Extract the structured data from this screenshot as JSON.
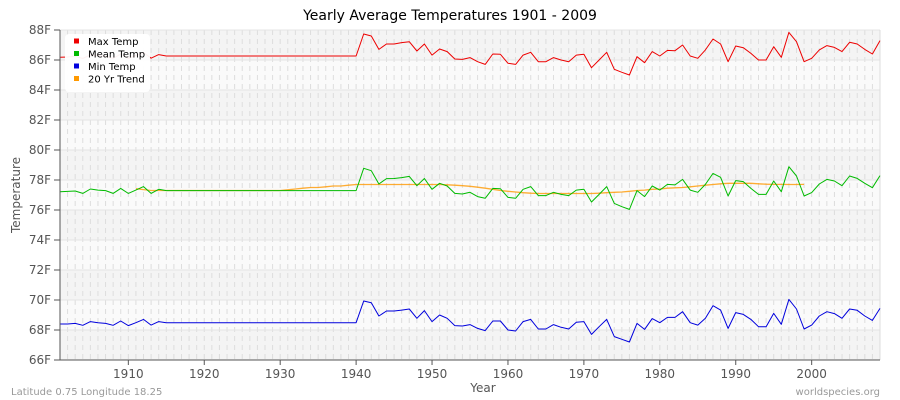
{
  "chart_data": {
    "type": "line",
    "title": "Yearly Average Temperatures 1901 - 2009",
    "xlabel": "Year",
    "ylabel": "Temperature",
    "xlim": [
      1901,
      2009
    ],
    "ylim": [
      66,
      88
    ],
    "x_ticks": [
      1910,
      1920,
      1930,
      1940,
      1950,
      1960,
      1970,
      1980,
      1990,
      2000
    ],
    "y_ticks": [
      "66F",
      "68F",
      "70F",
      "72F",
      "74F",
      "76F",
      "78F",
      "80F",
      "82F",
      "84F",
      "86F",
      "88F"
    ],
    "grid": true,
    "legend_position": "top-left",
    "x_start": 1901,
    "series": [
      {
        "name": "Max Temp",
        "color": "#ee0000",
        "values": [
          86.18,
          86.2,
          86.25,
          86.1,
          86.35,
          86.3,
          86.25,
          86.1,
          86.4,
          86.1,
          86.3,
          86.5,
          86.12,
          86.36,
          86.27,
          86.27,
          86.27,
          86.27,
          86.27,
          86.27,
          86.27,
          86.27,
          86.27,
          86.27,
          86.27,
          86.27,
          86.27,
          86.27,
          86.27,
          86.27,
          86.27,
          86.27,
          86.27,
          86.27,
          86.27,
          86.27,
          86.27,
          86.27,
          86.27,
          86.27,
          87.73,
          87.6,
          86.71,
          87.07,
          87.07,
          87.16,
          87.22,
          86.6,
          87.07,
          86.33,
          86.73,
          86.56,
          86.07,
          86.04,
          86.16,
          85.89,
          85.71,
          86.4,
          86.38,
          85.78,
          85.71,
          86.33,
          86.51,
          85.89,
          85.89,
          86.16,
          86.0,
          85.89,
          86.33,
          86.38,
          85.49,
          86.0,
          86.51,
          85.38,
          85.18,
          85.0,
          86.22,
          85.82,
          86.56,
          86.27,
          86.64,
          86.62,
          87.0,
          86.27,
          86.11,
          86.67,
          87.4,
          87.07,
          85.89,
          86.93,
          86.82,
          86.44,
          86.0,
          86.0,
          86.89,
          86.18,
          87.84,
          87.22,
          85.89,
          86.11,
          86.67,
          86.96,
          86.84,
          86.56,
          87.18,
          87.07,
          86.71,
          86.4,
          87.29
        ]
      },
      {
        "name": "Mean Temp",
        "color": "#00bb00",
        "values": [
          77.22,
          77.24,
          77.27,
          77.11,
          77.4,
          77.33,
          77.29,
          77.11,
          77.44,
          77.11,
          77.33,
          77.56,
          77.11,
          77.38,
          77.29,
          77.29,
          77.29,
          77.29,
          77.29,
          77.29,
          77.29,
          77.29,
          77.29,
          77.29,
          77.29,
          77.29,
          77.29,
          77.29,
          77.29,
          77.29,
          77.29,
          77.29,
          77.29,
          77.29,
          77.29,
          77.29,
          77.29,
          77.29,
          77.29,
          77.29,
          78.78,
          78.62,
          77.73,
          78.09,
          78.1,
          78.16,
          78.24,
          77.62,
          78.1,
          77.38,
          77.78,
          77.6,
          77.11,
          77.07,
          77.18,
          76.89,
          76.78,
          77.44,
          77.42,
          76.84,
          76.78,
          77.38,
          77.56,
          76.96,
          76.96,
          77.18,
          77.04,
          76.96,
          77.33,
          77.38,
          76.53,
          77.04,
          77.56,
          76.44,
          76.22,
          76.04,
          77.29,
          76.89,
          77.6,
          77.33,
          77.71,
          77.67,
          78.04,
          77.33,
          77.18,
          77.71,
          78.44,
          78.18,
          76.93,
          77.96,
          77.89,
          77.44,
          77.04,
          77.04,
          77.93,
          77.22,
          78.89,
          78.27,
          76.93,
          77.16,
          77.73,
          78.04,
          77.93,
          77.62,
          78.27,
          78.11,
          77.78,
          77.49,
          78.29
        ]
      },
      {
        "name": "Min Temp",
        "color": "#0000dd",
        "values": [
          68.4,
          68.4,
          68.44,
          68.31,
          68.56,
          68.49,
          68.44,
          68.31,
          68.6,
          68.29,
          68.49,
          68.71,
          68.33,
          68.56,
          68.49,
          68.49,
          68.49,
          68.49,
          68.49,
          68.49,
          68.49,
          68.49,
          68.49,
          68.49,
          68.49,
          68.49,
          68.49,
          68.49,
          68.49,
          68.49,
          68.49,
          68.49,
          68.49,
          68.49,
          68.49,
          68.49,
          68.49,
          68.49,
          68.49,
          68.49,
          69.93,
          69.82,
          68.93,
          69.27,
          69.27,
          69.33,
          69.4,
          68.78,
          69.29,
          68.56,
          69.0,
          68.78,
          68.29,
          68.27,
          68.36,
          68.11,
          67.96,
          68.6,
          68.6,
          68.0,
          67.93,
          68.56,
          68.71,
          68.07,
          68.07,
          68.36,
          68.18,
          68.07,
          68.51,
          68.56,
          67.71,
          68.22,
          68.71,
          67.56,
          67.38,
          67.2,
          68.44,
          68.04,
          68.76,
          68.49,
          68.84,
          68.84,
          69.22,
          68.49,
          68.33,
          68.78,
          69.62,
          69.33,
          68.11,
          69.16,
          69.04,
          68.71,
          68.22,
          68.22,
          69.11,
          68.38,
          70.04,
          69.4,
          68.07,
          68.33,
          68.93,
          69.22,
          69.09,
          68.78,
          69.4,
          69.31,
          68.93,
          68.64,
          69.44
        ]
      },
      {
        "name": "20 Yr Trend",
        "color": "#ff9900",
        "x_start": 1911,
        "values": [
          77.42,
          77.36,
          77.3,
          77.3,
          77.3,
          77.3,
          77.3,
          77.3,
          77.3,
          77.3,
          77.3,
          77.3,
          77.3,
          77.3,
          77.3,
          77.3,
          77.3,
          77.3,
          77.3,
          77.3,
          77.35,
          77.4,
          77.45,
          77.5,
          77.5,
          77.55,
          77.6,
          77.6,
          77.65,
          77.7,
          77.7,
          77.7,
          77.7,
          77.7,
          77.7,
          77.7,
          77.7,
          77.7,
          77.7,
          77.7,
          77.7,
          77.68,
          77.65,
          77.62,
          77.58,
          77.52,
          77.45,
          77.38,
          77.3,
          77.25,
          77.2,
          77.15,
          77.12,
          77.1,
          77.1,
          77.1,
          77.1,
          77.1,
          77.1,
          77.1,
          77.1,
          77.12,
          77.15,
          77.18,
          77.2,
          77.25,
          77.3,
          77.33,
          77.38,
          77.4,
          77.45,
          77.48,
          77.5,
          77.55,
          77.6,
          77.65,
          77.7,
          77.75,
          77.78,
          77.78,
          77.78,
          77.78,
          77.75,
          77.72,
          77.71,
          77.71,
          77.7,
          77.7,
          77.71
        ]
      }
    ]
  },
  "legend": {
    "items": [
      {
        "label": "Max Temp",
        "color": "#ee0000"
      },
      {
        "label": "Mean Temp",
        "color": "#00bb00"
      },
      {
        "label": "Min Temp",
        "color": "#0000dd"
      },
      {
        "label": "20 Yr Trend",
        "color": "#ff9900"
      }
    ]
  },
  "footer": {
    "location": "Latitude 0.75 Longitude 18.25",
    "source": "worldspecies.org"
  }
}
